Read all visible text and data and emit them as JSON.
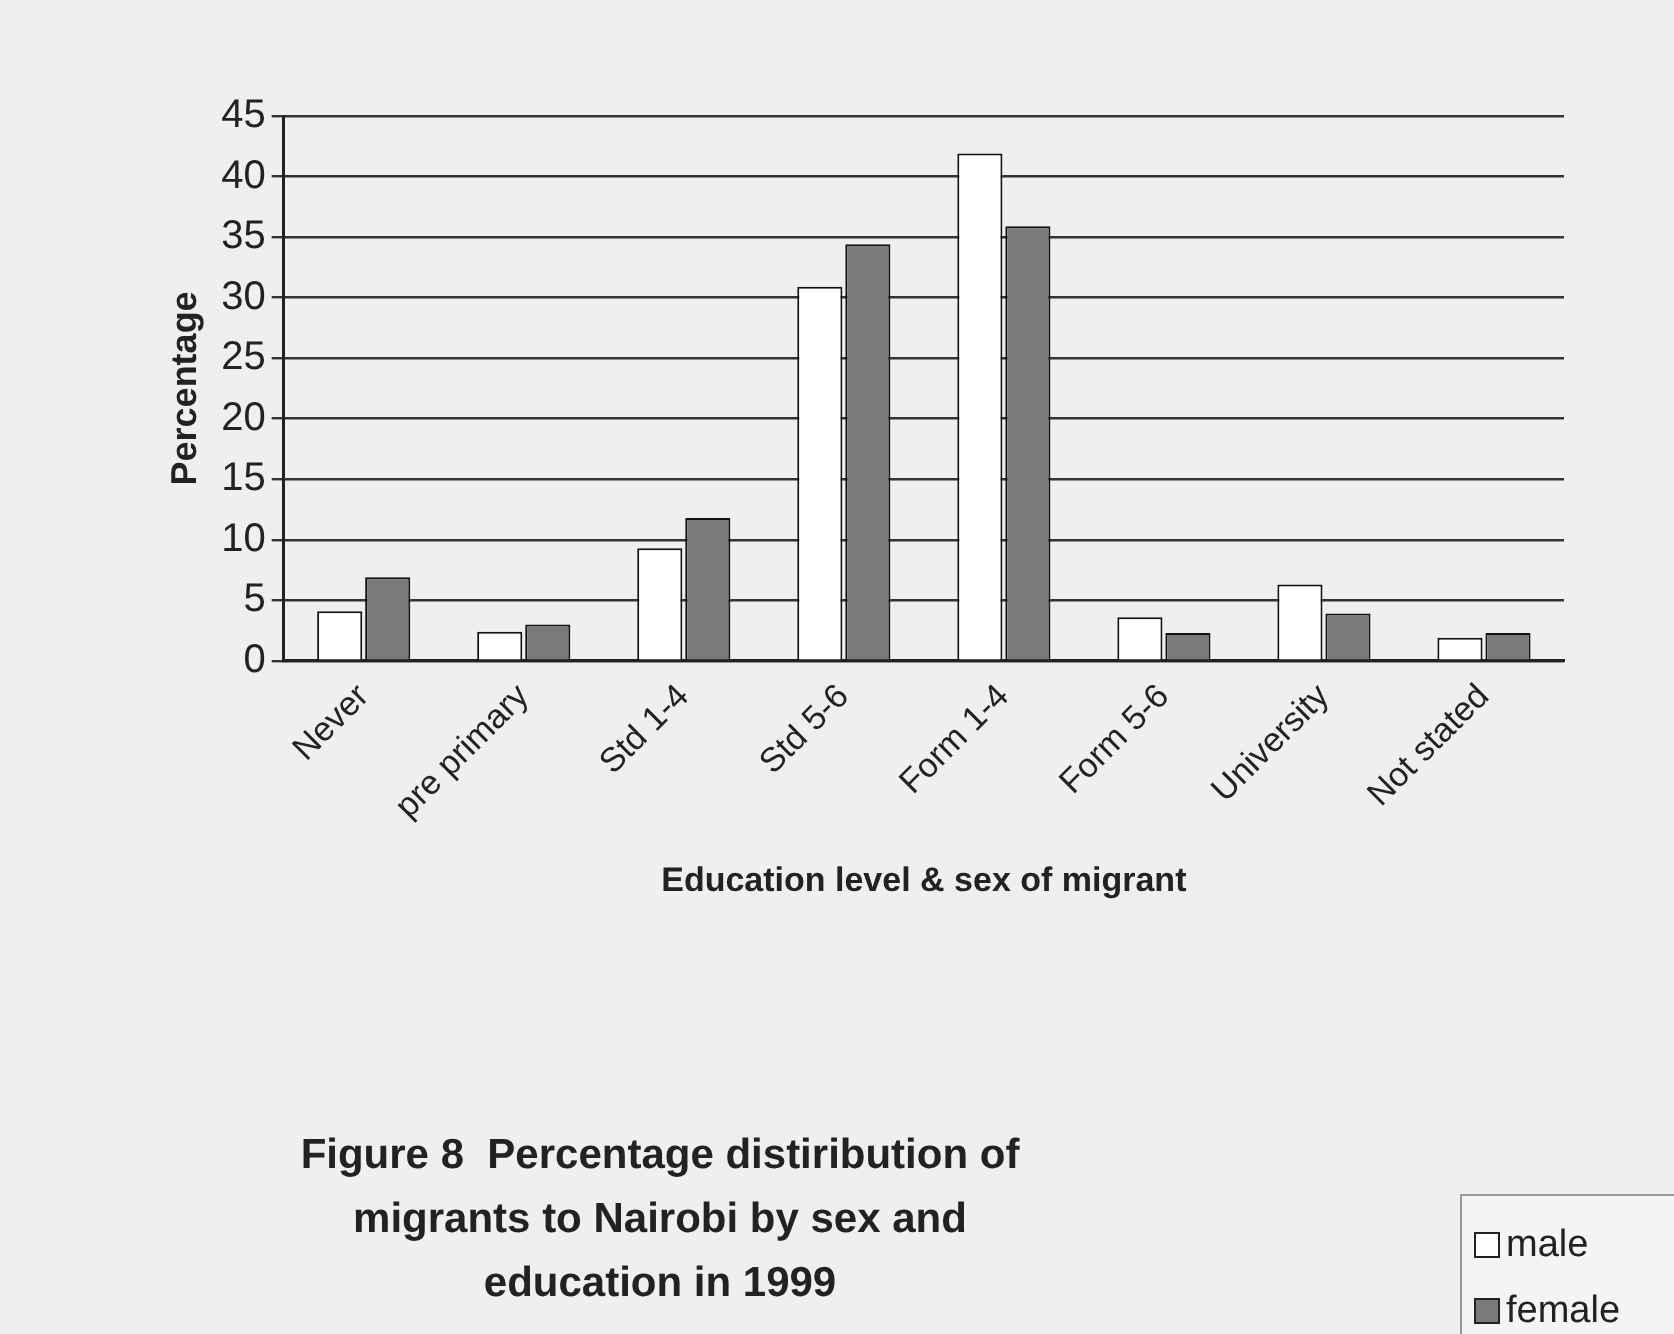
{
  "chart_data": {
    "type": "bar",
    "title": "Figure 8  Percentage distiribution of migrants to Nairobi by sex and education in 1999",
    "xlabel": "Education level & sex of migrant",
    "ylabel": "Percentage",
    "categories": [
      "Never",
      "pre primary",
      "Std 1-4",
      "Std 5-6",
      "Form 1-4",
      "Form 5-6",
      "University",
      "Not stated"
    ],
    "series": [
      {
        "name": "male",
        "color": "#ffffff",
        "values": [
          4.1,
          2.4,
          9.3,
          30.9,
          41.9,
          3.6,
          6.3,
          1.9
        ]
      },
      {
        "name": "female",
        "color": "#7a7a7a",
        "values": [
          6.9,
          3.0,
          11.8,
          34.4,
          35.9,
          2.3,
          3.9,
          2.3
        ]
      }
    ],
    "ylim": [
      0,
      45
    ],
    "yticks": [
      0,
      5,
      10,
      15,
      20,
      25,
      30,
      35,
      40,
      45
    ],
    "grid": "y",
    "legend": "bottom right"
  }
}
